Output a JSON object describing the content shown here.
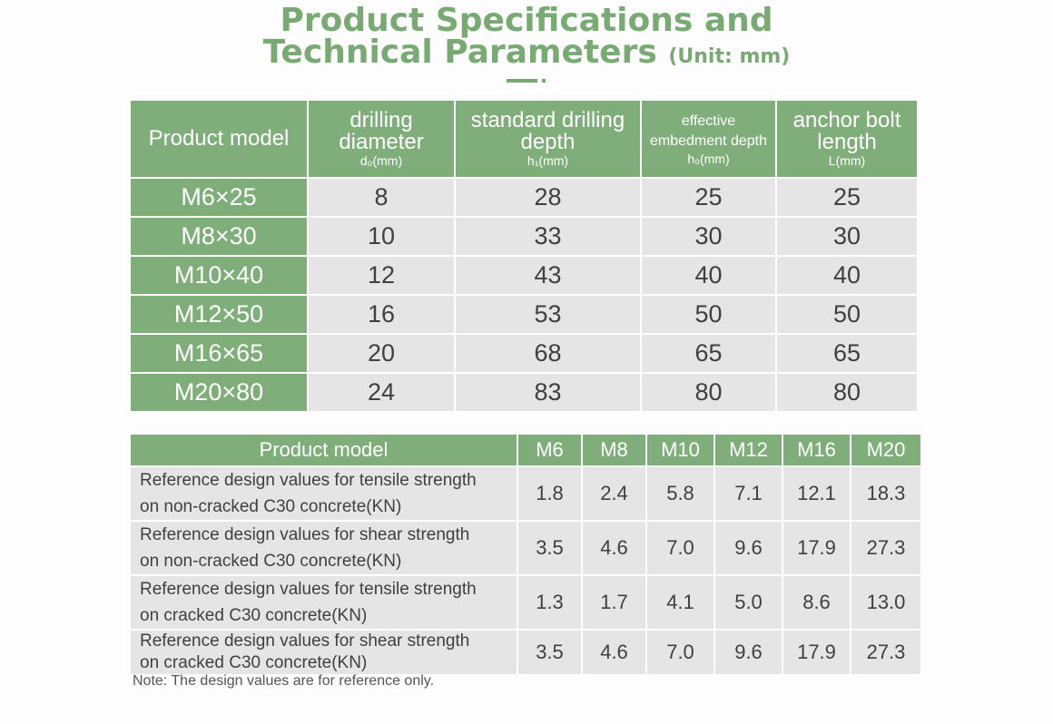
{
  "heading": {
    "line1": "Product Specifications and",
    "line2": "Technical Parameters",
    "unit": "(Unit: mm)"
  },
  "colors": {
    "accent": "#80ae7a",
    "cell": "#e5e5e5",
    "title": "#7aaa74"
  },
  "spec_table": {
    "headers": [
      {
        "label": "Product model",
        "sub": ""
      },
      {
        "label": "drilling diameter",
        "sub": "d₀(mm)"
      },
      {
        "label": "standard drilling depth",
        "sub": "h₁(mm)"
      },
      {
        "label": "effective embedment depth",
        "sub": "h₀(mm)"
      },
      {
        "label": "anchor bolt length",
        "sub": "L(mm)"
      }
    ],
    "rows": [
      [
        "M6×25",
        "8",
        "28",
        "25",
        "25"
      ],
      [
        "M8×30",
        "10",
        "33",
        "30",
        "30"
      ],
      [
        "M10×40",
        "12",
        "43",
        "40",
        "40"
      ],
      [
        "M12×50",
        "16",
        "53",
        "50",
        "50"
      ],
      [
        "M16×65",
        "20",
        "68",
        "65",
        "65"
      ],
      [
        "M20×80",
        "24",
        "83",
        "80",
        "80"
      ]
    ]
  },
  "strength_table": {
    "headers": [
      "Product model",
      "M6",
      "M8",
      "M10",
      "M12",
      "M16",
      "M20"
    ],
    "rows": [
      {
        "label": [
          "Reference design values for tensile strength",
          "on non-cracked C30 concrete(KN)"
        ],
        "values": [
          "1.8",
          "2.4",
          "5.8",
          "7.1",
          "12.1",
          "18.3"
        ]
      },
      {
        "label": [
          "Reference design values for shear strength",
          "on non-cracked C30 concrete(KN)"
        ],
        "values": [
          "3.5",
          "4.6",
          "7.0",
          "9.6",
          "17.9",
          "27.3"
        ]
      },
      {
        "label": [
          "Reference design values for tensile strength",
          "on cracked C30 concrete(KN)"
        ],
        "values": [
          "1.3",
          "1.7",
          "4.1",
          "5.0",
          "8.6",
          "13.0"
        ]
      },
      {
        "label": [
          "Reference design values for shear strength",
          "on cracked C30 concrete(KN)"
        ],
        "values": [
          "3.5",
          "4.6",
          "7.0",
          "9.6",
          "17.9",
          "27.3"
        ]
      }
    ]
  },
  "note": "Note: The design values are for reference only."
}
